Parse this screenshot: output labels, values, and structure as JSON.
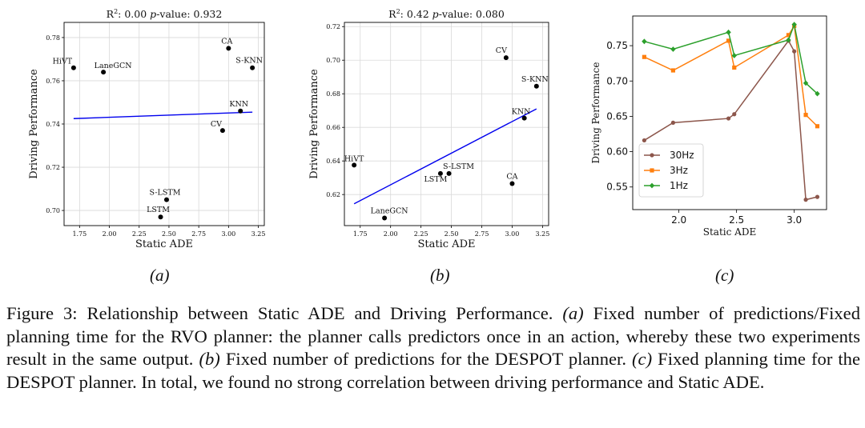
{
  "chart_data": [
    {
      "type": "scatter",
      "title_parts": [
        "R",
        "2",
        ": 0.00  ",
        "p",
        "-value: 0.932"
      ],
      "xlabel": "Static ADE",
      "ylabel": "Driving Performance",
      "xlim": [
        1.62,
        3.3
      ],
      "ylim": [
        0.693,
        0.787
      ],
      "xticks": [
        "1.75",
        "2.00",
        "2.25",
        "2.50",
        "2.75",
        "3.00",
        "3.25"
      ],
      "yticks": [
        "0.70",
        "0.72",
        "0.74",
        "0.76",
        "0.78"
      ],
      "points": [
        {
          "label": "HiVT",
          "x": 1.7,
          "y": 0.766
        },
        {
          "label": "LaneGCN",
          "x": 1.95,
          "y": 0.764
        },
        {
          "label": "CA",
          "x": 3.0,
          "y": 0.775
        },
        {
          "label": "S-KNN",
          "x": 3.2,
          "y": 0.766
        },
        {
          "label": "KNN",
          "x": 3.1,
          "y": 0.746
        },
        {
          "label": "CV",
          "x": 2.95,
          "y": 0.737
        },
        {
          "label": "S-LSTM",
          "x": 2.48,
          "y": 0.705
        },
        {
          "label": "LSTM",
          "x": 2.43,
          "y": 0.697
        }
      ],
      "fit_line": {
        "x": [
          1.7,
          3.2
        ],
        "y": [
          0.7425,
          0.7455
        ]
      },
      "panel_label": "(a)",
      "colors": {
        "points": "#000000",
        "fit": "#0000ee"
      }
    },
    {
      "type": "scatter",
      "title_parts": [
        "R",
        "2",
        ": 0.42  ",
        "p",
        "-value: 0.080"
      ],
      "xlabel": "Static ADE",
      "ylabel": "Driving Performance",
      "xlim": [
        1.62,
        3.3
      ],
      "ylim": [
        0.6015,
        0.7225
      ],
      "xticks": [
        "1.75",
        "2.00",
        "2.25",
        "2.50",
        "2.75",
        "3.00",
        "3.25"
      ],
      "yticks": [
        "0.62",
        "0.64",
        "0.66",
        "0.68",
        "0.70",
        "0.72"
      ],
      "points": [
        {
          "label": "HiVT",
          "x": 1.7,
          "y": 0.6375
        },
        {
          "label": "LaneGCN",
          "x": 1.95,
          "y": 0.606
        },
        {
          "label": "CV",
          "x": 2.95,
          "y": 0.7015
        },
        {
          "label": "S-KNN",
          "x": 3.2,
          "y": 0.6845
        },
        {
          "label": "KNN",
          "x": 3.1,
          "y": 0.6655
        },
        {
          "label": "S-LSTM",
          "x": 2.48,
          "y": 0.6325
        },
        {
          "label": "LSTM",
          "x": 2.41,
          "y": 0.6325
        },
        {
          "label": "CA",
          "x": 3.0,
          "y": 0.6265
        }
      ],
      "fit_line": {
        "x": [
          1.7,
          3.2
        ],
        "y": [
          0.6145,
          0.671
        ]
      },
      "panel_label": "(b)",
      "colors": {
        "points": "#000000",
        "fit": "#0000ee"
      }
    },
    {
      "type": "line",
      "xlabel": "Static ADE",
      "ylabel": "Driving Performance",
      "xlim": [
        1.6,
        3.28
      ],
      "ylim": [
        0.518,
        0.792
      ],
      "xticks": [
        "2.0",
        "2.5",
        "3.0"
      ],
      "yticks": [
        "0.55",
        "0.60",
        "0.65",
        "0.70",
        "0.75"
      ],
      "x": [
        1.7,
        1.95,
        2.43,
        2.48,
        2.95,
        3.0,
        3.1,
        3.2
      ],
      "series": [
        {
          "name": "30Hz",
          "color": "#8c564b",
          "marker": "circle",
          "values": [
            0.616,
            0.641,
            0.647,
            0.653,
            0.757,
            0.742,
            0.532,
            0.536
          ]
        },
        {
          "name": "3Hz",
          "color": "#ff7f0e",
          "marker": "square",
          "values": [
            0.734,
            0.715,
            0.757,
            0.719,
            0.765,
            0.778,
            0.652,
            0.636
          ]
        },
        {
          "name": "1Hz",
          "color": "#2ca02c",
          "marker": "diamond",
          "values": [
            0.756,
            0.745,
            0.769,
            0.736,
            0.758,
            0.78,
            0.697,
            0.682
          ]
        }
      ],
      "legend": "lower-left",
      "panel_label": "(c)"
    }
  ],
  "caption": {
    "label": "Figure 3:",
    "segments": [
      {
        "t": " Relationship between Static ADE and Driving Performance. ",
        "i": false
      },
      {
        "t": "(a)",
        "i": true
      },
      {
        "t": " Fixed number of predictions/Fixed planning time for the RVO planner: the planner calls predictors once in an action, whereby these two experiments result in the same output. ",
        "i": false
      },
      {
        "t": "(b)",
        "i": true
      },
      {
        "t": " Fixed number of predictions for the DESPOT planner. ",
        "i": false
      },
      {
        "t": "(c)",
        "i": true
      },
      {
        "t": " Fixed planning time for the DESPOT planner. In total, we found no strong correlation between driving performance and Static ADE.",
        "i": false
      }
    ]
  }
}
